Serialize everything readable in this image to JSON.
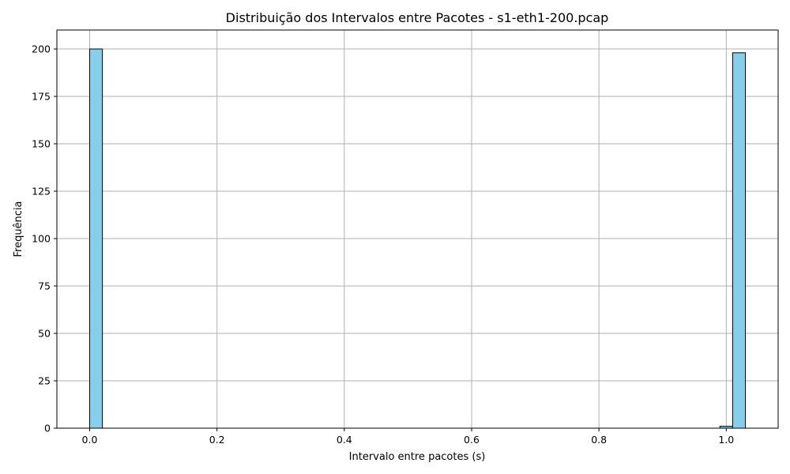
{
  "chart_data": {
    "type": "bar",
    "title": "Distribuição dos Intervalos entre Pacotes - s1-eth1-200.pcap",
    "xlabel": "Intervalo entre pacotes (s)",
    "ylabel": "Frequência",
    "xlim": [
      -0.0515,
      1.0815
    ],
    "ylim": [
      0,
      210
    ],
    "xticks": [
      "0.0",
      "0.2",
      "0.4",
      "0.6",
      "0.8",
      "1.0"
    ],
    "yticks": [
      "0",
      "25",
      "50",
      "75",
      "100",
      "125",
      "150",
      "175",
      "200"
    ],
    "grid": true,
    "bar_color": "#87ceeb",
    "bar_edge_color": "#000000",
    "bins": [
      {
        "x0": 0.0,
        "x1": 0.02,
        "count": 200
      },
      {
        "x0": 0.99,
        "x1": 1.01,
        "count": 1
      },
      {
        "x0": 1.01,
        "x1": 1.03,
        "count": 198
      }
    ]
  }
}
